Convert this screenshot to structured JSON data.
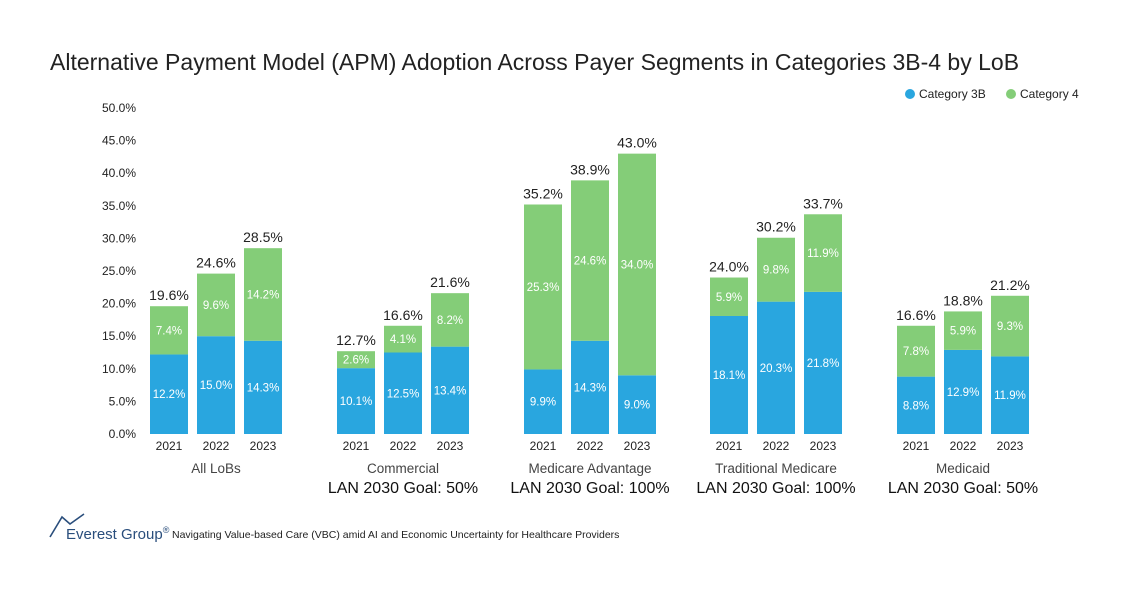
{
  "chart_data": {
    "type": "stacked-bar",
    "title": "Alternative Payment Model (APM) Adoption Across Payer Segments in Categories 3B-4 by LoB",
    "ylim": [
      0,
      50
    ],
    "yticks": [
      "0.0%",
      "5.0%",
      "10.0%",
      "15.0%",
      "20.0%",
      "25.0%",
      "30.0%",
      "35.0%",
      "40.0%",
      "45.0%",
      "50.0%"
    ],
    "legend": {
      "position": "top-right",
      "entries": [
        "Category 3B",
        "Category 4"
      ]
    },
    "colors": {
      "category_3b": "#29a6df",
      "category_4": "#84cd78"
    },
    "groups": [
      {
        "name": "All LoBs",
        "goal": "",
        "bars": [
          {
            "year": "2021",
            "cat3b": 12.2,
            "cat4": 7.4,
            "cat3b_label": "12.2%",
            "cat4_label": "7.4%",
            "total_label": "19.6%"
          },
          {
            "year": "2022",
            "cat3b": 15.0,
            "cat4": 9.6,
            "cat3b_label": "15.0%",
            "cat4_label": "9.6%",
            "total_label": "24.6%"
          },
          {
            "year": "2023",
            "cat3b": 14.3,
            "cat4": 14.2,
            "cat3b_label": "14.3%",
            "cat4_label": "14.2%",
            "total_label": "28.5%"
          }
        ]
      },
      {
        "name": "Commercial",
        "goal": "LAN 2030 Goal: 50%",
        "bars": [
          {
            "year": "2021",
            "cat3b": 10.1,
            "cat4": 2.6,
            "cat3b_label": "10.1%",
            "cat4_label": "2.6%",
            "total_label": "12.7%"
          },
          {
            "year": "2022",
            "cat3b": 12.5,
            "cat4": 4.1,
            "cat3b_label": "12.5%",
            "cat4_label": "4.1%",
            "total_label": "16.6%"
          },
          {
            "year": "2023",
            "cat3b": 13.4,
            "cat4": 8.2,
            "cat3b_label": "13.4%",
            "cat4_label": "8.2%",
            "total_label": "21.6%"
          }
        ]
      },
      {
        "name": "Medicare Advantage",
        "goal": "LAN 2030 Goal: 100%",
        "bars": [
          {
            "year": "2021",
            "cat3b": 9.9,
            "cat4": 25.3,
            "cat3b_label": "9.9%",
            "cat4_label": "25.3%",
            "total_label": "35.2%"
          },
          {
            "year": "2022",
            "cat3b": 14.3,
            "cat4": 24.6,
            "cat3b_label": "14.3%",
            "cat4_label": "24.6%",
            "total_label": "38.9%"
          },
          {
            "year": "2023",
            "cat3b": 9.0,
            "cat4": 34.0,
            "cat3b_label": "9.0%",
            "cat4_label": "34.0%",
            "total_label": "43.0%"
          }
        ]
      },
      {
        "name": "Traditional Medicare",
        "goal": "LAN 2030 Goal: 100%",
        "bars": [
          {
            "year": "2021",
            "cat3b": 18.1,
            "cat4": 5.9,
            "cat3b_label": "18.1%",
            "cat4_label": "5.9%",
            "total_label": "24.0%"
          },
          {
            "year": "2022",
            "cat3b": 20.3,
            "cat4": 9.8,
            "cat3b_label": "20.3%",
            "cat4_label": "9.8%",
            "total_label": "30.2%"
          },
          {
            "year": "2023",
            "cat3b": 21.8,
            "cat4": 11.9,
            "cat3b_label": "21.8%",
            "cat4_label": "11.9%",
            "total_label": "33.7%"
          }
        ]
      },
      {
        "name": "Medicaid",
        "goal": "LAN 2030 Goal: 50%",
        "bars": [
          {
            "year": "2021",
            "cat3b": 8.8,
            "cat4": 7.8,
            "cat3b_label": "8.8%",
            "cat4_label": "7.8%",
            "total_label": "16.6%"
          },
          {
            "year": "2022",
            "cat3b": 12.9,
            "cat4": 5.9,
            "cat3b_label": "12.9%",
            "cat4_label": "5.9%",
            "total_label": "18.8%"
          },
          {
            "year": "2023",
            "cat3b": 11.9,
            "cat4": 9.3,
            "cat3b_label": "11.9%",
            "cat4_label": "9.3%",
            "total_label": "21.2%"
          }
        ]
      }
    ]
  },
  "footer": {
    "brand": "Everest Group",
    "brand_mark": "®",
    "report_title": "Navigating Value-based Care (VBC) amid AI and Economic Uncertainty for Healthcare Providers"
  }
}
